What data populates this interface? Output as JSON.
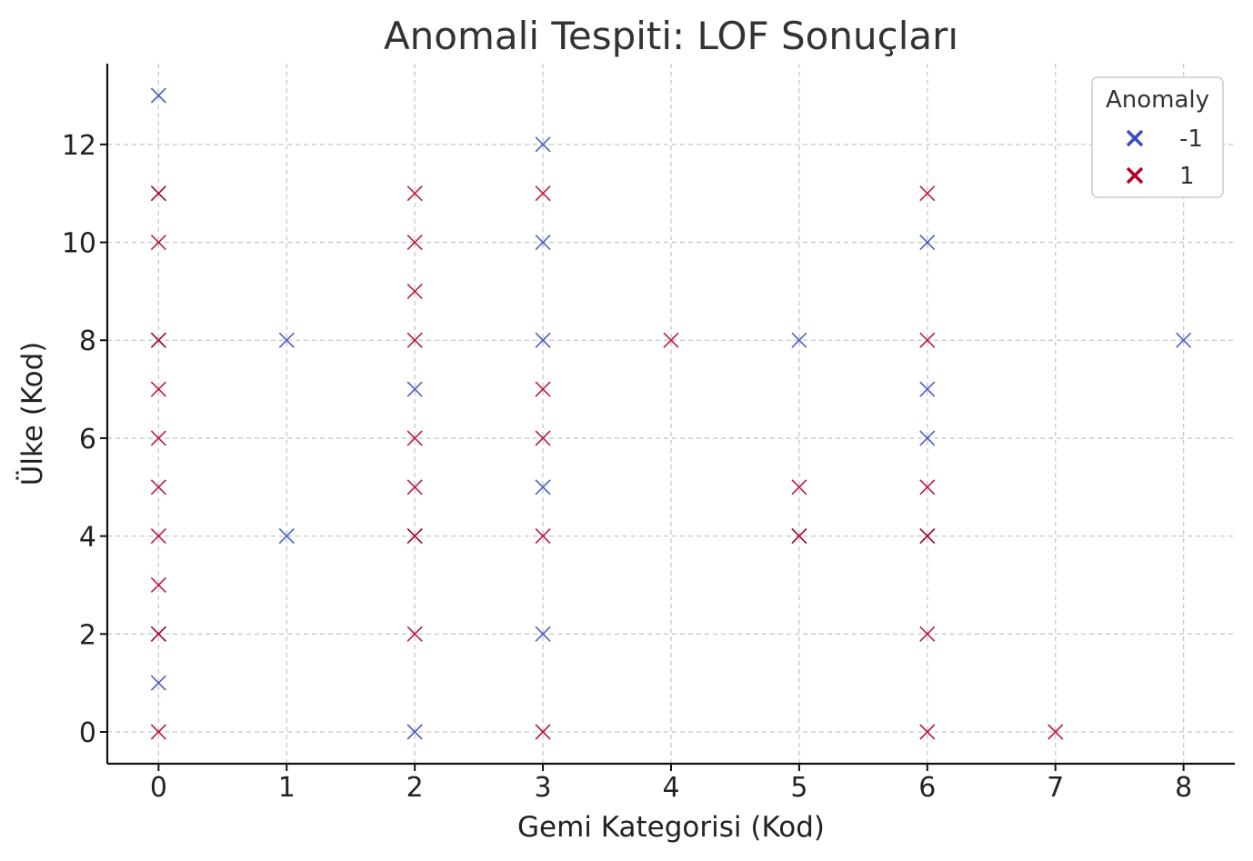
{
  "chart_data": {
    "type": "scatter",
    "title": "Anomali Tespiti: LOF Sonuçları",
    "xlabel": "Gemi Kategorisi (Kod)",
    "ylabel": "Ülke (Kod)",
    "xlim": [
      -0.4,
      8.4
    ],
    "ylim": [
      -0.65,
      13.65
    ],
    "xticks": [
      0,
      1,
      2,
      3,
      4,
      5,
      6,
      7,
      8
    ],
    "yticks": [
      0,
      2,
      4,
      6,
      8,
      10,
      12
    ],
    "grid": true,
    "marker": "x",
    "legend": {
      "title": "Anomaly",
      "placement": "top-right",
      "entries": [
        {
          "label": "-1",
          "color": "#3b4cc0"
        },
        {
          "label": "1",
          "color": "#b40426"
        }
      ]
    },
    "series": [
      {
        "name": "-1",
        "color": "#3b4cc0",
        "points": [
          [
            0,
            13
          ],
          [
            0,
            11
          ],
          [
            0,
            8
          ],
          [
            0,
            2
          ],
          [
            0,
            1
          ],
          [
            1,
            8
          ],
          [
            1,
            4
          ],
          [
            2,
            7
          ],
          [
            2,
            4
          ],
          [
            2,
            0
          ],
          [
            3,
            12
          ],
          [
            3,
            10
          ],
          [
            3,
            8
          ],
          [
            3,
            5
          ],
          [
            3,
            2
          ],
          [
            5,
            8
          ],
          [
            5,
            4
          ],
          [
            6,
            10
          ],
          [
            6,
            7
          ],
          [
            6,
            6
          ],
          [
            6,
            4
          ],
          [
            8,
            8
          ]
        ]
      },
      {
        "name": "1",
        "color": "#b40426",
        "points": [
          [
            0,
            11
          ],
          [
            0,
            10
          ],
          [
            0,
            8
          ],
          [
            0,
            7
          ],
          [
            0,
            6
          ],
          [
            0,
            5
          ],
          [
            0,
            4
          ],
          [
            0,
            3
          ],
          [
            0,
            2
          ],
          [
            0,
            0
          ],
          [
            2,
            11
          ],
          [
            2,
            10
          ],
          [
            2,
            9
          ],
          [
            2,
            8
          ],
          [
            2,
            6
          ],
          [
            2,
            5
          ],
          [
            2,
            4
          ],
          [
            2,
            2
          ],
          [
            3,
            11
          ],
          [
            3,
            7
          ],
          [
            3,
            6
          ],
          [
            3,
            4
          ],
          [
            3,
            0
          ],
          [
            4,
            8
          ],
          [
            5,
            5
          ],
          [
            5,
            4
          ],
          [
            6,
            11
          ],
          [
            6,
            8
          ],
          [
            6,
            5
          ],
          [
            6,
            4
          ],
          [
            6,
            2
          ],
          [
            6,
            0
          ],
          [
            7,
            0
          ]
        ]
      }
    ]
  }
}
